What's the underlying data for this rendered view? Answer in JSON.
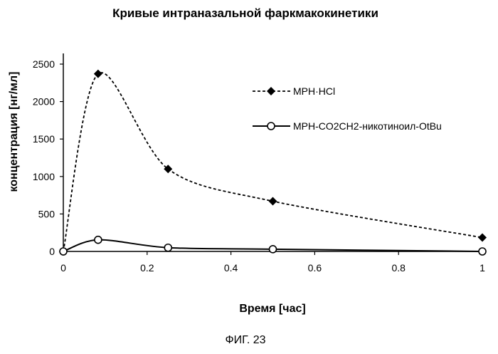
{
  "chart_data": {
    "type": "line",
    "title": "Кривые интраназальной фаркмакокинетики",
    "xlabel": "Время [час]",
    "ylabel": "концентрация [нг/мл]",
    "xlim": [
      0,
      1
    ],
    "ylim": [
      0,
      2500
    ],
    "x_ticks": [
      "0",
      "0.2",
      "0.4",
      "0.6",
      "0.8",
      "1"
    ],
    "y_ticks": [
      "0",
      "500",
      "1000",
      "1500",
      "2000",
      "2500"
    ],
    "grid": false,
    "legend_position": "right",
    "series": [
      {
        "name": "MPH·HCl",
        "marker": "filled-diamond",
        "line_style": "dashed",
        "color": "#000000",
        "points": [
          {
            "x": 0,
            "y": 0
          },
          {
            "x": 0.083,
            "y": 2370
          },
          {
            "x": 0.25,
            "y": 1100
          },
          {
            "x": 0.5,
            "y": 670
          },
          {
            "x": 1.0,
            "y": 185
          }
        ]
      },
      {
        "name": "MPH-CO2CH2-никотиноил-OtBu",
        "marker": "open-circle",
        "line_style": "solid",
        "color": "#000000",
        "points": [
          {
            "x": 0,
            "y": 0
          },
          {
            "x": 0.083,
            "y": 155
          },
          {
            "x": 0.25,
            "y": 50
          },
          {
            "x": 0.5,
            "y": 30
          },
          {
            "x": 1.0,
            "y": 0
          }
        ]
      }
    ]
  },
  "caption": "ФИГ. 23"
}
